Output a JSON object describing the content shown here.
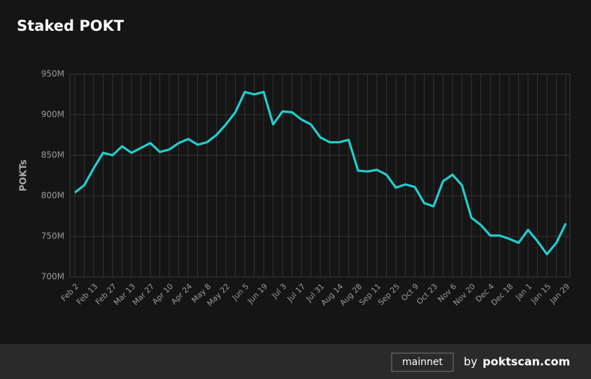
{
  "chart_data": {
    "type": "line",
    "title": "Staked POKT",
    "y_label": "POKTs",
    "categories": [
      "Feb 2",
      null,
      "Feb 13",
      null,
      "Feb 27",
      null,
      "Mar 13",
      null,
      "Mar 27",
      null,
      "Apr 10",
      null,
      "Apr 24",
      null,
      "May 8",
      null,
      "May 22",
      null,
      "Jun 5",
      null,
      "Jun 19",
      null,
      "Jul 3",
      null,
      "Jul 17",
      null,
      "Jul 31",
      null,
      "Aug 14",
      null,
      "Aug 28",
      null,
      "Sep 11",
      null,
      "Sep 25",
      null,
      "Oct 9",
      null,
      "Oct 23",
      null,
      "Nov 6",
      null,
      "Nov 20",
      null,
      "Dec 4",
      null,
      "Dec 18",
      null,
      "Jan 1",
      null,
      "Jan 15",
      null,
      "Jan 29"
    ],
    "series": [
      {
        "name": "Staked POKT",
        "color": "#22cfcf",
        "values": [
          804,
          813,
          834,
          853,
          850,
          861,
          853,
          859,
          865,
          854,
          857,
          865,
          870,
          863,
          866,
          875,
          888,
          903,
          928,
          925,
          928,
          888,
          904,
          903,
          894,
          888,
          872,
          866,
          866,
          869,
          831,
          830,
          832,
          826,
          810,
          814,
          811,
          791,
          787,
          818,
          826,
          813,
          773,
          764,
          751,
          751,
          747,
          742,
          758,
          744,
          728,
          742,
          766
        ]
      }
    ],
    "ylim": [
      700,
      950
    ],
    "yticks": [
      {
        "value": 700,
        "label": "700M"
      },
      {
        "value": 750,
        "label": "750M"
      },
      {
        "value": 800,
        "label": "800M"
      },
      {
        "value": 850,
        "label": "850M"
      },
      {
        "value": 900,
        "label": "900M"
      },
      {
        "value": 950,
        "label": "950M"
      }
    ],
    "grid": true
  },
  "footer": {
    "network": "mainnet",
    "by": "by",
    "site": "poktscan.com"
  }
}
